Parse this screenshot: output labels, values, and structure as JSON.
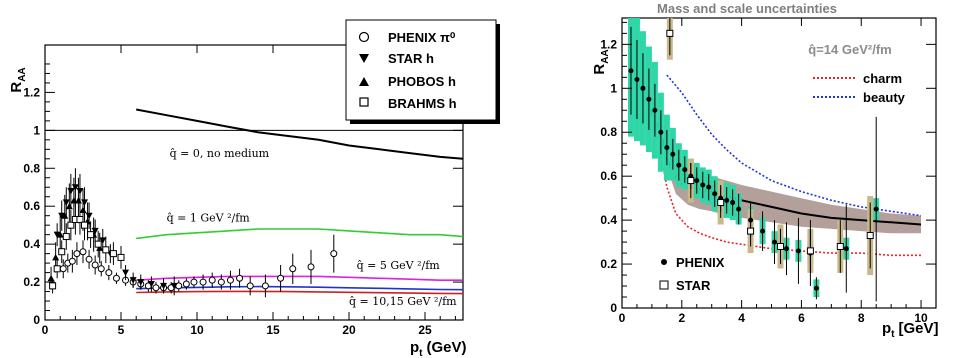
{
  "chart_data": [
    {
      "type": "scatter",
      "ylabel": "R",
      "ylabel_sub": "AA",
      "xlabel": "p",
      "xlabel_sub": "t",
      "xlabel_unit": "(GeV)",
      "xlim": [
        0,
        27.5
      ],
      "ylim": [
        0,
        1.45
      ],
      "xticks": [
        "0",
        "5",
        "10",
        "15",
        "20",
        "25"
      ],
      "xtick_values": [
        0,
        5,
        10,
        15,
        20,
        25
      ],
      "yticks": [
        "0",
        "0.2",
        "0.4",
        "0.6",
        "0.8",
        "1",
        "1.2"
      ],
      "ytick_values": [
        0,
        0.2,
        0.4,
        0.6,
        0.8,
        1.0,
        1.2
      ],
      "reference_line_y": 1,
      "legend_position": "top-right",
      "legend": [
        {
          "marker": "open-circle",
          "label": "PHENIX π⁰"
        },
        {
          "marker": "down-triangle",
          "label": "STAR h"
        },
        {
          "marker": "up-triangle",
          "label": "PHOBOS h"
        },
        {
          "marker": "open-square",
          "label": "BRAHMS h"
        }
      ],
      "series": [
        {
          "name": "PHENIX π⁰",
          "marker": "open-circle",
          "x": [
            1.2,
            1.5,
            1.8,
            2.1,
            2.5,
            2.9,
            3.3,
            3.7,
            4.2,
            4.7,
            5.3,
            5.8,
            6.3,
            6.8,
            7.3,
            7.8,
            8.3,
            8.8,
            9.3,
            9.8,
            10.4,
            11.0,
            11.6,
            12.2,
            12.8,
            13.5,
            14.5,
            15.5,
            16.3,
            17.5,
            19.0
          ],
          "y": [
            0.27,
            0.3,
            0.31,
            0.35,
            0.36,
            0.32,
            0.29,
            0.27,
            0.25,
            0.22,
            0.21,
            0.2,
            0.19,
            0.18,
            0.17,
            0.17,
            0.17,
            0.18,
            0.19,
            0.2,
            0.2,
            0.21,
            0.2,
            0.21,
            0.22,
            0.18,
            0.18,
            0.22,
            0.27,
            0.28,
            0.35
          ],
          "yerr": [
            0.05,
            0.05,
            0.06,
            0.06,
            0.06,
            0.05,
            0.05,
            0.04,
            0.04,
            0.03,
            0.03,
            0.03,
            0.03,
            0.03,
            0.03,
            0.03,
            0.03,
            0.03,
            0.03,
            0.03,
            0.04,
            0.04,
            0.04,
            0.05,
            0.05,
            0.05,
            0.06,
            0.07,
            0.08,
            0.09,
            0.1
          ]
        },
        {
          "name": "STAR h",
          "marker": "down-triangle",
          "x": [
            0.8,
            1.1,
            1.4,
            1.7,
            2.0,
            2.3,
            2.6,
            2.9,
            3.3,
            3.8,
            4.3,
            5.3,
            5.8,
            6.3,
            7.0,
            7.8,
            8.5
          ],
          "y": [
            0.45,
            0.55,
            0.62,
            0.68,
            0.7,
            0.68,
            0.62,
            0.55,
            0.47,
            0.42,
            0.35,
            0.25,
            0.21,
            0.2,
            0.19,
            0.18,
            0.18
          ],
          "yerr": [
            0.06,
            0.08,
            0.08,
            0.09,
            0.1,
            0.09,
            0.08,
            0.07,
            0.06,
            0.06,
            0.05,
            0.04,
            0.04,
            0.04,
            0.04,
            0.04,
            0.05
          ]
        },
        {
          "name": "PHOBOS h",
          "marker": "up-triangle",
          "x": [
            0.4,
            0.7,
            1.0,
            1.3,
            1.6,
            1.9,
            2.2,
            2.5,
            2.8,
            3.2,
            3.6
          ],
          "y": [
            0.22,
            0.33,
            0.45,
            0.55,
            0.6,
            0.63,
            0.63,
            0.58,
            0.52,
            0.45,
            0.38
          ],
          "yerr": [
            0.06,
            0.08,
            0.1,
            0.11,
            0.12,
            0.12,
            0.12,
            0.11,
            0.1,
            0.09,
            0.08
          ]
        },
        {
          "name": "BRAHMS h",
          "marker": "open-square",
          "x": [
            0.5,
            0.8,
            1.1,
            1.4,
            1.7,
            2.0,
            2.3,
            2.6,
            3.0,
            3.5,
            4.0,
            4.5,
            5.0
          ],
          "y": [
            0.18,
            0.27,
            0.36,
            0.44,
            0.5,
            0.53,
            0.53,
            0.5,
            0.45,
            0.4,
            0.37,
            0.35,
            0.33
          ],
          "yerr": [
            0.04,
            0.05,
            0.06,
            0.07,
            0.08,
            0.08,
            0.08,
            0.08,
            0.07,
            0.07,
            0.07,
            0.06,
            0.06
          ]
        }
      ],
      "curves": [
        {
          "color": "#000000",
          "x": [
            6,
            8,
            10,
            12,
            14,
            16,
            18,
            20,
            22,
            24,
            26,
            27.5
          ],
          "y": [
            1.11,
            1.08,
            1.05,
            1.02,
            0.99,
            0.97,
            0.95,
            0.92,
            0.9,
            0.88,
            0.86,
            0.85
          ]
        },
        {
          "color": "#33cc33",
          "x": [
            6,
            8,
            10,
            12,
            14,
            16,
            18,
            20,
            22,
            24,
            26,
            27.5
          ],
          "y": [
            0.43,
            0.45,
            0.46,
            0.47,
            0.48,
            0.48,
            0.48,
            0.47,
            0.46,
            0.45,
            0.45,
            0.44
          ]
        },
        {
          "color": "#dd22dd",
          "x": [
            6,
            8,
            10,
            12,
            14,
            16,
            18,
            20,
            22,
            24,
            26,
            27.5
          ],
          "y": [
            0.21,
            0.22,
            0.225,
            0.23,
            0.23,
            0.23,
            0.23,
            0.225,
            0.22,
            0.215,
            0.21,
            0.21
          ]
        },
        {
          "color": "#2233cc",
          "x": [
            6,
            8,
            10,
            12,
            14,
            16,
            18,
            20,
            22,
            24,
            26,
            27.5
          ],
          "y": [
            0.165,
            0.17,
            0.172,
            0.175,
            0.176,
            0.175,
            0.173,
            0.17,
            0.167,
            0.164,
            0.161,
            0.16
          ]
        },
        {
          "color": "#cc2222",
          "x": [
            6,
            8,
            10,
            12,
            14,
            16,
            18,
            20,
            22,
            24,
            26,
            27.5
          ],
          "y": [
            0.145,
            0.148,
            0.15,
            0.151,
            0.151,
            0.15,
            0.148,
            0.146,
            0.144,
            0.142,
            0.14,
            0.139
          ]
        }
      ],
      "annotations": [
        {
          "text": "q̂ = 0, no medium",
          "x": 8.2,
          "y": 0.86
        },
        {
          "text": "q̂ = 1 GeV ²/fm",
          "x": 8.0,
          "y": 0.52
        },
        {
          "text": "q̂ = 5 GeV ²/fm",
          "x": 20.5,
          "y": 0.27
        },
        {
          "text": "q̂ = 10,15 GeV ²/fm",
          "x": 20.0,
          "y": 0.08
        }
      ]
    },
    {
      "type": "scatter",
      "title": "Mass and scale uncertainties",
      "ylabel": "R",
      "ylabel_sub": "AA",
      "xlabel": "p",
      "xlabel_sub": "t",
      "xlabel_unit": "[GeV]",
      "xlim": [
        0,
        10.5
      ],
      "ylim": [
        0,
        1.32
      ],
      "xticks": [
        "0",
        "2",
        "4",
        "6",
        "8",
        "10"
      ],
      "xtick_values": [
        0,
        2,
        4,
        6,
        8,
        10
      ],
      "yticks": [
        "0",
        "0.2",
        "0.4",
        "0.6",
        "0.8",
        "1",
        "1.2"
      ],
      "ytick_values": [
        0,
        0.2,
        0.4,
        0.6,
        0.8,
        1.0,
        1.2
      ],
      "legend_position": "top-right",
      "qhat_label": "q̂=14 GeV²/fm",
      "legend": [
        {
          "style": "dotted-line",
          "color": "#ee2222",
          "label": "charm"
        },
        {
          "style": "dotted-line",
          "color": "#2233dd",
          "label": "beauty"
        }
      ],
      "marker_legend": [
        {
          "marker": "filled-circle",
          "label": "PHENIX"
        },
        {
          "marker": "open-square",
          "label": "STAR"
        }
      ],
      "band": {
        "color": "#b3a09a",
        "x": [
          1.5,
          1.8,
          2.2,
          2.6,
          3.0,
          3.5,
          4.0,
          5.0,
          6.0,
          7.0,
          8.0,
          9.0,
          10.0
        ],
        "low": [
          0.64,
          0.52,
          0.47,
          0.45,
          0.44,
          0.42,
          0.41,
          0.39,
          0.37,
          0.36,
          0.35,
          0.34,
          0.34
        ],
        "high": [
          0.7,
          0.64,
          0.62,
          0.61,
          0.6,
          0.58,
          0.56,
          0.53,
          0.5,
          0.47,
          0.45,
          0.43,
          0.42
        ]
      },
      "curves": [
        {
          "name": "central",
          "color": "#000000",
          "style": "solid",
          "x": [
            0.4,
            0.7,
            1.0,
            1.3,
            1.6,
            1.9,
            2.2,
            2.6,
            3.0,
            3.5,
            4.0,
            5.0,
            6.0,
            7.0,
            8.0,
            9.0,
            10.0
          ],
          "y": [
            1.08,
            0.98,
            0.89,
            0.8,
            0.65,
            0.57,
            0.55,
            0.54,
            0.53,
            0.51,
            0.49,
            0.46,
            0.43,
            0.41,
            0.4,
            0.39,
            0.38
          ]
        },
        {
          "name": "beauty",
          "color": "#2233dd",
          "style": "dotted",
          "x": [
            1.5,
            2.0,
            2.5,
            3.0,
            3.5,
            4.0,
            5.0,
            6.0,
            7.0,
            8.0,
            9.0,
            10.0
          ],
          "y": [
            1.06,
            0.98,
            0.88,
            0.79,
            0.72,
            0.66,
            0.58,
            0.53,
            0.49,
            0.46,
            0.44,
            0.42
          ]
        },
        {
          "name": "charm",
          "color": "#ee2222",
          "style": "dotted",
          "x": [
            1.2,
            1.5,
            1.8,
            2.2,
            2.6,
            3.0,
            3.5,
            4.0,
            5.0,
            6.0,
            7.0,
            8.0,
            9.0,
            10.0
          ],
          "y": [
            0.78,
            0.55,
            0.43,
            0.37,
            0.34,
            0.32,
            0.3,
            0.29,
            0.27,
            0.26,
            0.25,
            0.25,
            0.24,
            0.24
          ]
        }
      ],
      "series": [
        {
          "name": "PHENIX",
          "marker": "filled-circle",
          "x": [
            0.3,
            0.5,
            0.7,
            0.9,
            1.1,
            1.3,
            1.5,
            1.7,
            1.9,
            2.1,
            2.3,
            2.5,
            2.7,
            2.9,
            3.1,
            3.3,
            3.5,
            3.7,
            3.9,
            4.3,
            4.7,
            5.1,
            5.5,
            5.9,
            6.3,
            6.5,
            7.5,
            8.5
          ],
          "y": [
            1.08,
            1.04,
            1.0,
            0.95,
            0.9,
            0.8,
            0.73,
            0.7,
            0.65,
            0.63,
            0.6,
            0.58,
            0.56,
            0.55,
            0.52,
            0.5,
            0.49,
            0.48,
            0.45,
            0.4,
            0.35,
            0.3,
            0.27,
            0.26,
            0.25,
            0.09,
            0.27,
            0.45
          ],
          "yerr": [
            0.2,
            0.18,
            0.16,
            0.14,
            0.12,
            0.1,
            0.08,
            0.07,
            0.07,
            0.06,
            0.06,
            0.06,
            0.06,
            0.06,
            0.06,
            0.06,
            0.06,
            0.06,
            0.07,
            0.08,
            0.09,
            0.1,
            0.12,
            0.15,
            0.15,
            0.05,
            0.2,
            0.42
          ],
          "syserr": [
            0.3,
            0.28,
            0.26,
            0.24,
            0.22,
            0.18,
            0.15,
            0.12,
            0.1,
            0.09,
            0.08,
            0.08,
            0.08,
            0.08,
            0.08,
            0.08,
            0.08,
            0.08,
            0.07,
            0.06,
            0.06,
            0.05,
            0.05,
            0.05,
            0.05,
            0.04,
            0.05,
            0.05
          ]
        },
        {
          "name": "STAR",
          "marker": "open-square",
          "x": [
            1.6,
            2.3,
            3.3,
            4.3,
            5.3,
            6.3,
            7.3,
            8.3
          ],
          "y": [
            1.25,
            0.58,
            0.48,
            0.35,
            0.28,
            0.26,
            0.28,
            0.33
          ],
          "yerr": [
            0.1,
            0.08,
            0.07,
            0.07,
            0.08,
            0.1,
            0.12,
            0.15
          ],
          "syserr": [
            0.12,
            0.1,
            0.1,
            0.1,
            0.1,
            0.1,
            0.12,
            0.18
          ]
        }
      ]
    }
  ]
}
